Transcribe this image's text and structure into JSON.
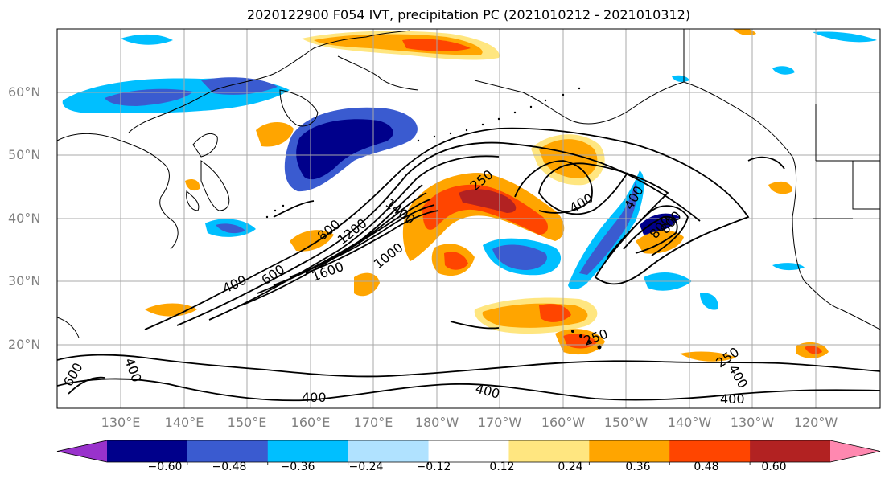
{
  "title": "2020122900 F054 IVT, precipitation PC (2021010212 - 2021010312)",
  "lat_labels": [
    "60°N",
    "50°N",
    "40°N",
    "30°N",
    "20°N"
  ],
  "lon_labels": [
    "130°E",
    "140°E",
    "150°E",
    "160°E",
    "170°E",
    "180°W",
    "170°W",
    "160°W",
    "150°W",
    "140°W",
    "130°W",
    "120°W"
  ],
  "colorbar": {
    "tick_labels": [
      "−0.60",
      "−0.48",
      "−0.36",
      "−0.24",
      "−0.12",
      "0.12",
      "0.24",
      "0.36",
      "0.48",
      "0.60"
    ],
    "colors": [
      "#9932cc",
      "#00008b",
      "#3a5bd0",
      "#00bfff",
      "#b0e2ff",
      "#ffffff",
      "#ffe680",
      "#ffa500",
      "#ff4500",
      "#b22222",
      "#ff88b0"
    ]
  },
  "ivt_contour_labels": [
    "1400",
    "250",
    "400",
    "400",
    "800",
    "1200",
    "800",
    "600",
    "1000",
    "1600",
    "400",
    "600",
    "800",
    "250",
    "400",
    "400",
    "400",
    "250",
    "400",
    "400"
  ]
}
